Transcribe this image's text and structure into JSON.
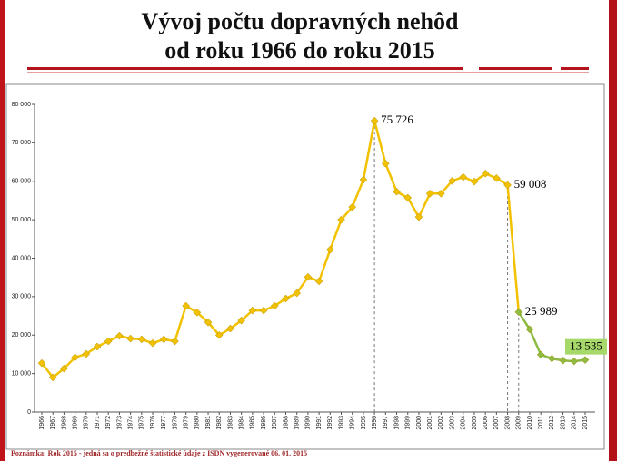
{
  "title": [
    "Vývoj počtu dopravných nehôd",
    "od roku 1966 do roku 2015"
  ],
  "chart_data": {
    "type": "line",
    "categories": [
      "1966",
      "1967",
      "1968",
      "1969",
      "1970",
      "1971",
      "1972",
      "1973",
      "1974",
      "1975",
      "1976",
      "1977",
      "1978",
      "1979",
      "1980",
      "1981",
      "1982",
      "1983",
      "1984",
      "1985",
      "1986",
      "1987",
      "1988",
      "1989",
      "1990",
      "1991",
      "1992",
      "1993",
      "1994",
      "1995",
      "1996",
      "1997",
      "1998",
      "1999",
      "2000",
      "2001",
      "2002",
      "2003",
      "2004",
      "2005",
      "2006",
      "2007",
      "2008",
      "2009",
      "2010",
      "2011",
      "2012",
      "2013",
      "2014",
      "2015"
    ],
    "values": [
      12700,
      9000,
      11300,
      14200,
      15100,
      17000,
      18400,
      19800,
      19100,
      18900,
      17900,
      18900,
      18400,
      27600,
      25900,
      23300,
      20000,
      21700,
      23800,
      26400,
      26400,
      27600,
      29500,
      30900,
      35100,
      34000,
      42200,
      50000,
      53300,
      60400,
      75726,
      64600,
      57300,
      55700,
      50700,
      56800,
      56800,
      60100,
      61100,
      59900,
      62000,
      60800,
      59008,
      25989,
      21500,
      14900,
      13900,
      13400,
      13200,
      13535
    ],
    "value_labels": [
      null,
      null,
      null,
      null,
      null,
      null,
      null,
      null,
      null,
      null,
      null,
      null,
      null,
      null,
      null,
      null,
      null,
      null,
      null,
      null,
      null,
      null,
      null,
      null,
      null,
      null,
      null,
      null,
      null,
      null,
      "75 726",
      null,
      null,
      null,
      null,
      null,
      null,
      null,
      null,
      null,
      null,
      null,
      "59 008",
      "25 989",
      null,
      null,
      null,
      null,
      null,
      "13 535"
    ],
    "color": "#f2c200",
    "recent_color": "#8dbb44",
    "recent_from": "2009",
    "drop_lines": [
      "1996",
      "2008",
      "2009"
    ],
    "ylim": [
      0,
      80000
    ],
    "yticks": [
      0,
      {
        "value": 10000,
        "label": "10 000"
      },
      {
        "value": 20000,
        "label": "20 000"
      },
      {
        "value": 30000,
        "label": "30 000"
      },
      {
        "value": 40000,
        "label": "40 000"
      },
      {
        "value": 50000,
        "label": "50 000"
      },
      {
        "value": 60000,
        "label": "60 000"
      },
      {
        "value": 70000,
        "label": "70 000"
      },
      {
        "value": 80000,
        "label": "80 000"
      }
    ],
    "grid": false
  },
  "footnote": "Poznámka: Rok 2015 - jedná sa o predbežné štatistické údaje z ISDN vygenerované 06. 01. 2015"
}
